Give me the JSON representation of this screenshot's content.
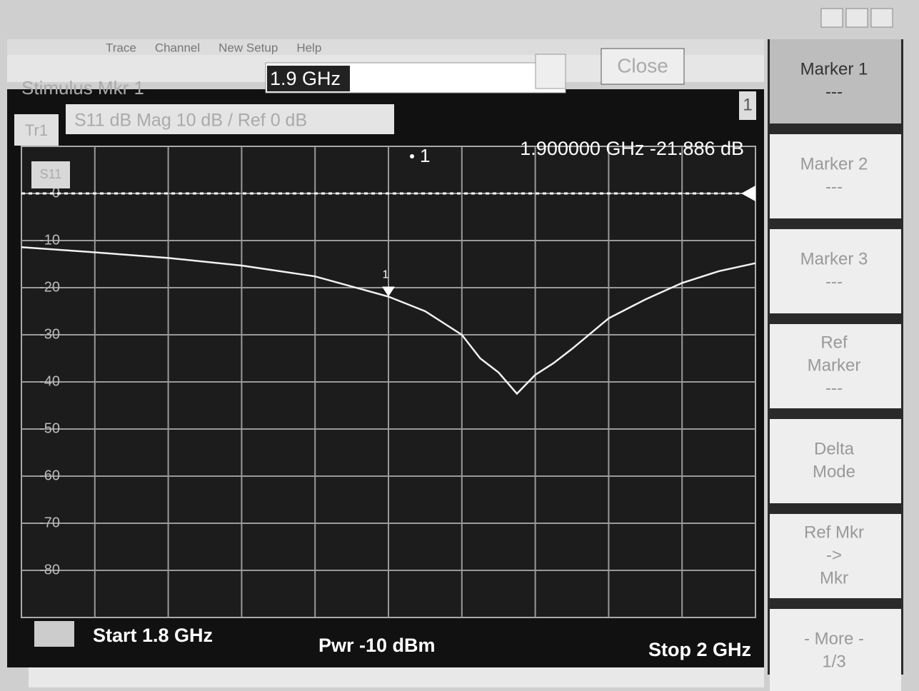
{
  "menu": [
    "Trace",
    "Channel",
    "New Setup",
    "Help"
  ],
  "toolbar": {
    "label": "Stimulus Mkr 1",
    "input": "1.9 GHz",
    "close": "Close"
  },
  "status": {
    "trace": "Tr1",
    "format": "S11 dB Mag 10 dB / Ref 0 dB",
    "window": "1",
    "param": "S11"
  },
  "footer": {
    "start": "Start 1.8 GHz",
    "power": "Pwr -10 dBm",
    "stop": "Stop 2 GHz"
  },
  "softkeys": [
    {
      "lines": [
        "Marker 1",
        "---"
      ]
    },
    {
      "lines": [
        "Marker 2",
        "---"
      ]
    },
    {
      "lines": [
        "Marker 3",
        "---"
      ]
    },
    {
      "lines": [
        "Ref",
        "Marker",
        "---"
      ]
    },
    {
      "lines": [
        "Delta",
        "Mode"
      ]
    },
    {
      "lines": [
        "Ref Mkr",
        "->",
        "Mkr"
      ]
    },
    {
      "lines": [
        "- More -",
        "1/3"
      ]
    }
  ],
  "chart_data": {
    "type": "line",
    "x": [
      1.8,
      1.82,
      1.84,
      1.86,
      1.88,
      1.9,
      1.91,
      1.92,
      1.925,
      1.93,
      1.935,
      1.94,
      1.945,
      1.95,
      1.96,
      1.97,
      1.98,
      1.99,
      2.0
    ],
    "values": [
      -11.4,
      -12.5,
      -13.7,
      -15.3,
      -17.6,
      -21.9,
      -25,
      -30,
      -35,
      -38,
      -42.5,
      -38.5,
      -36,
      -33,
      -26.5,
      -22.5,
      -19,
      -16.5,
      -14.8
    ],
    "color": "#f2f2f2",
    "xlim": [
      1.8,
      2.0
    ],
    "xticks": [
      1.82,
      1.84,
      1.86,
      1.88,
      1.9,
      1.92,
      1.94,
      1.96,
      1.98
    ],
    "ylim": [
      -90,
      10
    ],
    "yticks": [
      0,
      -10,
      -20,
      -30,
      -40,
      -50,
      -60,
      -70,
      -80
    ],
    "grid": true,
    "ref_level": 0,
    "markers": [
      {
        "label": "1",
        "x": 1.9,
        "y": -21.886,
        "readout": "1.900000 GHz  -21.886 dB"
      }
    ]
  }
}
